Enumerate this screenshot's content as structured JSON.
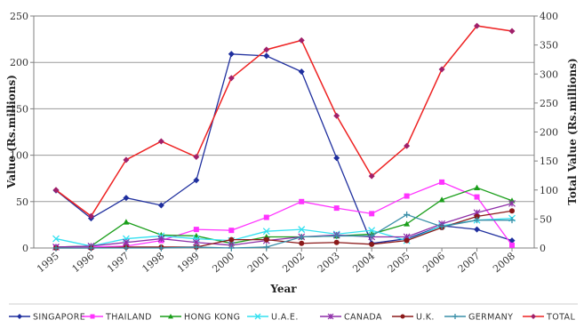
{
  "chart_data": {
    "type": "line",
    "xlabel": "Year",
    "ylabel_left": "Value (Rs.millions)",
    "ylabel_right": "Total Value (Rs.millions)",
    "ylim_left": [
      0,
      250
    ],
    "ylim_right": [
      0,
      400
    ],
    "yticks_left": [
      "0",
      "50",
      "100",
      "150",
      "200",
      "250"
    ],
    "yticks_right": [
      "0",
      "50",
      "100",
      "150",
      "200",
      "250",
      "300",
      "350",
      "400"
    ],
    "categories": [
      "1995",
      "1996",
      "1997",
      "1998",
      "1999",
      "2000",
      "2001",
      "2002",
      "2003",
      "2004",
      "2005",
      "2006",
      "2007",
      "2008"
    ],
    "grid": "horizontal",
    "legend_position": "bottom",
    "series": [
      {
        "name": "SINGAPORE",
        "axis": "left",
        "color": "#1f2f9e",
        "marker": "diamond",
        "values": [
          62,
          32,
          54,
          46,
          73,
          209,
          207,
          190,
          97,
          5,
          10,
          24,
          20,
          8
        ]
      },
      {
        "name": "THAILAND",
        "axis": "left",
        "color": "#ff33ff",
        "marker": "square",
        "values": [
          1,
          1,
          2,
          8,
          20,
          19,
          33,
          50,
          43,
          37,
          56,
          71,
          55,
          3
        ]
      },
      {
        "name": "HONG KONG",
        "axis": "left",
        "color": "#1a9e1a",
        "marker": "triangle",
        "values": [
          1,
          2,
          28,
          14,
          13,
          5,
          12,
          12,
          13,
          15,
          26,
          52,
          65,
          51
        ]
      },
      {
        "name": "U.A.E.",
        "axis": "left",
        "color": "#33e0f0",
        "marker": "x",
        "values": [
          10,
          2,
          10,
          13,
          10,
          8,
          18,
          20,
          15,
          19,
          8,
          24,
          30,
          32
        ]
      },
      {
        "name": "CANADA",
        "axis": "left",
        "color": "#8e2fa8",
        "marker": "star",
        "values": [
          1,
          2,
          6,
          10,
          6,
          3,
          8,
          12,
          14,
          12,
          12,
          26,
          38,
          48
        ]
      },
      {
        "name": "U.K.",
        "axis": "left",
        "color": "#8b1a1a",
        "marker": "circle",
        "values": [
          0,
          0,
          1,
          1,
          1,
          9,
          9,
          5,
          6,
          4,
          8,
          22,
          34,
          40
        ]
      },
      {
        "name": "GERMANY",
        "axis": "left",
        "color": "#3a8fa8",
        "marker": "plus",
        "values": [
          0,
          0,
          0,
          0,
          1,
          0,
          1,
          12,
          13,
          13,
          36,
          23,
          30,
          30
        ]
      },
      {
        "name": "TOTAL",
        "axis": "right",
        "color": "#ee2222",
        "marker": "diamond",
        "values": [
          100,
          55,
          152,
          184,
          157,
          293,
          342,
          358,
          228,
          124,
          176,
          308,
          383,
          374
        ]
      }
    ]
  }
}
